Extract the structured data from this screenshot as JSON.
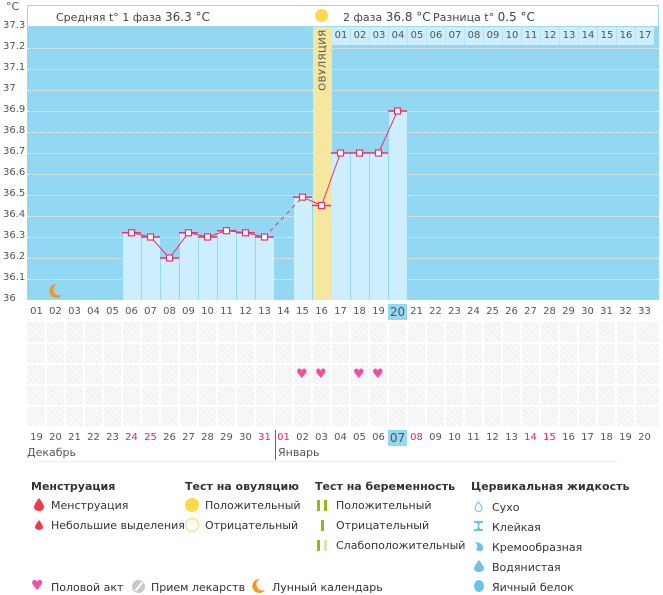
{
  "chart_data": {
    "type": "bar",
    "title": "",
    "ylabel": "°C",
    "xlabel": "",
    "ylim": [
      36.0,
      37.3
    ],
    "yticks": [
      "37.3",
      "37.2",
      "37.1",
      "37",
      "36.9",
      "36.8",
      "36.7",
      "36.6",
      "36.5",
      "36.4",
      "36.3",
      "36.2",
      "36.1",
      "36"
    ],
    "cycle_days": [
      "01",
      "02",
      "03",
      "04",
      "05",
      "06",
      "07",
      "08",
      "09",
      "10",
      "11",
      "12",
      "13",
      "14",
      "15",
      "16",
      "17",
      "18",
      "19",
      "20",
      "21",
      "22",
      "23",
      "24",
      "25",
      "26",
      "27",
      "28",
      "29",
      "30",
      "31",
      "32",
      "33"
    ],
    "phase2_days": [
      "01",
      "02",
      "03",
      "04",
      "05",
      "06",
      "07",
      "08",
      "09",
      "10",
      "11",
      "12",
      "13",
      "14",
      "15",
      "16",
      "17"
    ],
    "ovulation_day": 16,
    "current_day": 20,
    "temperatures": [
      {
        "day": 6,
        "value": 36.32
      },
      {
        "day": 7,
        "value": 36.3
      },
      {
        "day": 8,
        "value": 36.2
      },
      {
        "day": 9,
        "value": 36.32
      },
      {
        "day": 10,
        "value": 36.3
      },
      {
        "day": 11,
        "value": 36.33
      },
      {
        "day": 12,
        "value": 36.32
      },
      {
        "day": 13,
        "value": 36.3
      },
      {
        "day": 15,
        "value": 36.49
      },
      {
        "day": 16,
        "value": 36.45
      },
      {
        "day": 17,
        "value": 36.7
      },
      {
        "day": 18,
        "value": 36.7
      },
      {
        "day": 19,
        "value": 36.7
      },
      {
        "day": 20,
        "value": 36.9
      }
    ],
    "dashed_segment": {
      "from_day": 13,
      "to_day": 15
    },
    "moon_day": 2,
    "intercourse_days": [
      15,
      16,
      18,
      19
    ],
    "calendar_dates": [
      "19",
      "20",
      "21",
      "22",
      "23",
      "24",
      "25",
      "26",
      "27",
      "28",
      "29",
      "30",
      "31",
      "01",
      "02",
      "03",
      "04",
      "05",
      "06",
      "07",
      "08",
      "09",
      "10",
      "11",
      "12",
      "13",
      "14",
      "15",
      "16",
      "17",
      "18",
      "19",
      "20"
    ],
    "calendar_red": [
      5,
      6,
      12,
      13,
      20,
      26,
      27
    ],
    "current_calendar_index": 19
  },
  "header": {
    "unit": "°C",
    "phase1_label": "Средняя t° 1 фаза",
    "phase1_value": "36.3 °C",
    "phase2_label": "2 фаза",
    "phase2_value": "36.8 °C",
    "diff_label": "Разница t°",
    "diff_value": "0.5 °C",
    "ovulation_label": "ОВУЛЯЦИЯ"
  },
  "months": {
    "first": "Декабрь",
    "second": "Январь"
  },
  "legend": {
    "menstruation": {
      "title": "Менструация",
      "items": [
        "Менструация",
        "Небольшие выделения"
      ]
    },
    "ovulation_test": {
      "title": "Тест на овуляцию",
      "items": [
        "Положительный",
        "Отрицательный"
      ]
    },
    "pregnancy_test": {
      "title": "Тест на беременность",
      "items": [
        "Положительный",
        "Отрицательный",
        "Слабоположительный"
      ]
    },
    "cervical_fluid": {
      "title": "Цервикальная жидкость",
      "items": [
        "Сухо",
        "Клейкая",
        "Кремообразная",
        "Водянистая",
        "Яичный белок"
      ]
    },
    "bottom": [
      "Половой акт",
      "Прием лекарств",
      "Лунный календарь"
    ]
  },
  "colors": {
    "plot_bg": "#93d8f2",
    "bar": "#cdeefc",
    "line": "#e8326a",
    "ovulation": "#f6e7a0",
    "sun": "#fdd84a",
    "heart": "#f0509f",
    "moon": "#f39a1e",
    "red_date": "#e8205c",
    "green": "#8dbb1a"
  }
}
